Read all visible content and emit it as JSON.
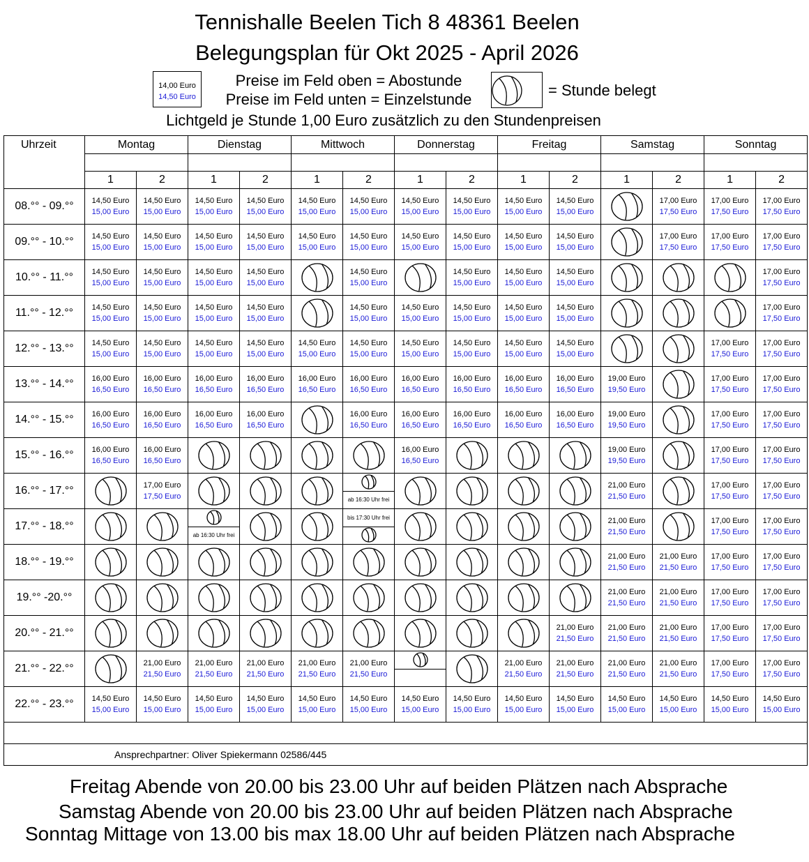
{
  "header": {
    "title": "Tennishalle Beelen Tich 8 48361 Beelen",
    "subtitle": "Belegungsplan für Okt 2025 - April 2026",
    "legend_abo_price": "14,00 Euro",
    "legend_einzel_price": "14,50 Euro",
    "legend_line1": "Preise im Feld oben = Abostunde",
    "legend_line2": "Preise im Feld unten = Einzelstunde",
    "legend_booked": "= Stunde belegt",
    "light_fee": "Lichtgeld je Stunde 1,00 Euro zusätzlich zu den Stundenpreisen"
  },
  "table": {
    "time_header": "Uhrzeit",
    "days": [
      "Montag",
      "Dienstag",
      "Mittwoch",
      "Donnerstag",
      "Freitag",
      "Samstag",
      "Sonntag"
    ],
    "courts": [
      "1",
      "2"
    ],
    "rows": [
      {
        "time": "08.°° - 09.°°",
        "cells": [
          "14,50 Euro|15,00 Euro",
          "14,50 Euro|15,00 Euro",
          "14,50 Euro|15,00 Euro",
          "14,50 Euro|15,00 Euro",
          "14,50 Euro|15,00 Euro",
          "14,50 Euro|15,00 Euro",
          "14,50 Euro|15,00 Euro",
          "14,50 Euro|15,00 Euro",
          "14,50 Euro|15,00 Euro",
          "14,50 Euro|15,00 Euro",
          "B",
          "17,00 Euro|17,50 Euro",
          "17,00 Euro|17,50 Euro",
          "17,00 Euro|17,50 Euro"
        ]
      },
      {
        "time": "09.°° - 10.°°",
        "cells": [
          "14,50 Euro|15,00 Euro",
          "14,50 Euro|15,00 Euro",
          "14,50 Euro|15,00 Euro",
          "14,50 Euro|15,00 Euro",
          "14,50 Euro|15,00 Euro",
          "14,50 Euro|15,00 Euro",
          "14,50 Euro|15,00 Euro",
          "14,50 Euro|15,00 Euro",
          "14,50 Euro|15,00 Euro",
          "14,50 Euro|15,00 Euro",
          "B",
          "17,00 Euro|17,50 Euro",
          "17,00 Euro|17,50 Euro",
          "17,00 Euro|17,50 Euro"
        ]
      },
      {
        "time": "10.°° - 11.°°",
        "cells": [
          "14,50 Euro|15,00 Euro",
          "14,50 Euro|15,00 Euro",
          "14,50 Euro|15,00 Euro",
          "14,50 Euro|15,00 Euro",
          "B",
          "14,50 Euro|15,00 Euro",
          "B",
          "14,50 Euro|15,00 Euro",
          "14,50 Euro|15,00 Euro",
          "14,50 Euro|15,00 Euro",
          "B",
          "B",
          "B",
          "17,00 Euro|17,50 Euro"
        ]
      },
      {
        "time": "11.°° - 12.°°",
        "cells": [
          "14,50 Euro|15,00 Euro",
          "14,50 Euro|15,00 Euro",
          "14,50 Euro|15,00 Euro",
          "14,50 Euro|15,00 Euro",
          "B",
          "14,50 Euro|15,00 Euro",
          "14,50 Euro|15,00 Euro",
          "14,50 Euro|15,00 Euro",
          "14,50 Euro|15,00 Euro",
          "14,50 Euro|15,00 Euro",
          "B",
          "B",
          "B",
          "17,00 Euro|17,50 Euro"
        ]
      },
      {
        "time": "12.°° - 13.°°",
        "cells": [
          "14,50 Euro|15,00 Euro",
          "14,50 Euro|15,00 Euro",
          "14,50 Euro|15,00 Euro",
          "14,50 Euro|15,00 Euro",
          "14,50 Euro|15,00 Euro",
          "14,50 Euro|15,00 Euro",
          "14,50 Euro|15,00 Euro",
          "14,50 Euro|15,00 Euro",
          "14,50 Euro|15,00 Euro",
          "14,50 Euro|15,00 Euro",
          "B",
          "B",
          "17,00 Euro|17,50 Euro",
          "17,00 Euro|17,50 Euro"
        ]
      },
      {
        "time": "13.°° - 14.°°",
        "cells": [
          "16,00 Euro|16,50 Euro",
          "16,00 Euro|16,50 Euro",
          "16,00 Euro|16,50 Euro",
          "16,00 Euro|16,50 Euro",
          "16,00 Euro|16,50 Euro",
          "16,00 Euro|16,50 Euro",
          "16,00 Euro|16,50 Euro",
          "16,00 Euro|16,50 Euro",
          "16,00 Euro|16,50 Euro",
          "16,00 Euro|16,50 Euro",
          "19,00 Euro|19,50 Euro",
          "B",
          "17,00 Euro|17,50 Euro",
          "17,00 Euro|17,50 Euro"
        ]
      },
      {
        "time": "14.°° - 15.°°",
        "cells": [
          "16,00 Euro|16,50 Euro",
          "16,00 Euro|16,50 Euro",
          "16,00 Euro|16,50 Euro",
          "16,00 Euro|16,50 Euro",
          "B",
          "16,00 Euro|16,50 Euro",
          "16,00 Euro|16,50 Euro",
          "16,00 Euro|16,50 Euro",
          "16,00 Euro|16,50 Euro",
          "16,00 Euro|16,50 Euro",
          "19,00 Euro|19,50 Euro",
          "B",
          "17,00 Euro|17,50 Euro",
          "17,00 Euro|17,50 Euro"
        ]
      },
      {
        "time": "15.°° - 16.°°",
        "cells": [
          "16,00 Euro|16,50 Euro",
          "16,00 Euro|16,50 Euro",
          "B",
          "B",
          "B",
          "B",
          "16,00 Euro|16,50 Euro",
          "B",
          "B",
          "B",
          "19,00 Euro|19,50 Euro",
          "B",
          "17,00 Euro|17,50 Euro",
          "17,00 Euro|17,50 Euro"
        ]
      },
      {
        "time": "16.°° - 17.°°",
        "cells": [
          "B",
          "17,00 Euro|17,50 Euro",
          "B",
          "B",
          "B",
          "ST:ab 16:30 Uhr frei",
          "B",
          "B",
          "B",
          "B",
          "21,00 Euro|21,50 Euro",
          "B",
          "17,00 Euro|17,50 Euro",
          "17,00 Euro|17,50 Euro"
        ]
      },
      {
        "time": "17.°° - 18.°°",
        "cells": [
          "B",
          "B",
          "ST:ab 16:30 Uhr frei",
          "B",
          "B",
          "SB:bis 17:30 Uhr frei",
          "B",
          "B",
          "B",
          "B",
          "21,00 Euro|21,50 Euro",
          "B",
          "17,00 Euro|17,50 Euro",
          "17,00 Euro|17,50 Euro"
        ]
      },
      {
        "time": "18.°° - 19.°°",
        "cells": [
          "B",
          "B",
          "B",
          "B",
          "B",
          "B",
          "B",
          "B",
          "B",
          "B",
          "21,00 Euro|21,50 Euro",
          "21,00 Euro|21,50 Euro",
          "17,00 Euro|17,50 Euro",
          "17,00 Euro|17,50 Euro"
        ]
      },
      {
        "time": "19.°° -20.°°",
        "cells": [
          "B",
          "B",
          "B",
          "B",
          "B",
          "B",
          "B",
          "B",
          "B",
          "B",
          "21,00 Euro|21,50 Euro",
          "21,00 Euro|21,50 Euro",
          "17,00 Euro|17,50 Euro",
          "17,00 Euro|17,50 Euro"
        ]
      },
      {
        "time": "20.°° - 21.°°",
        "cells": [
          "B",
          "B",
          "B",
          "B",
          "B",
          "B",
          "B",
          "B",
          "B",
          "21,00 Euro|21,50 Euro",
          "21,00 Euro|21,50 Euro",
          "21,00 Euro|21,50 Euro",
          "17,00 Euro|17,50 Euro",
          "17,00 Euro|17,50 Euro"
        ]
      },
      {
        "time": "21.°° - 22.°°",
        "cells": [
          "B",
          "21,00 Euro|21,50 Euro",
          "21,00 Euro|21,50 Euro",
          "21,00 Euro|21,50 Euro",
          "21,00 Euro|21,50 Euro",
          "21,00 Euro|21,50 Euro",
          "ST:",
          "B",
          "21,00 Euro|21,50 Euro",
          "21,00 Euro|21,50 Euro",
          "21,00 Euro|21,50 Euro",
          "21,00 Euro|21,50 Euro",
          "17,00 Euro|17,50 Euro",
          "17,00 Euro|17,50 Euro"
        ]
      },
      {
        "time": "22.°° - 23.°°",
        "cells": [
          "14,50 Euro|15,00 Euro",
          "14,50 Euro|15,00 Euro",
          "14,50 Euro|15,00 Euro",
          "14,50 Euro|15,00 Euro",
          "14,50 Euro|15,00 Euro",
          "14,50 Euro|15,00 Euro",
          "14,50 Euro|15,00 Euro",
          "14,50 Euro|15,00 Euro",
          "14,50 Euro|15,00 Euro",
          "14,50 Euro|15,00 Euro",
          "14,50 Euro|15,00 Euro",
          "14,50 Euro|15,00 Euro",
          "14,50 Euro|15,00 Euro",
          "14,50 Euro|15,00 Euro"
        ]
      }
    ],
    "contact": "Ansprechpartner: Oliver Spiekermann 02586/445"
  },
  "footer": {
    "line1": "Freitag Abende von 20.00 bis 23.00 Uhr auf beiden Plätzen nach Absprache",
    "line2": "Samstag Abende von 20.00 bis 23.00 Uhr auf beiden Plätzen nach Absprache",
    "line3": "Sonntag Mittage von 13.00 bis max 18.00 Uhr auf beiden Plätzen nach Absprache"
  },
  "colors": {
    "einzel_price": "#1a1ad6",
    "border": "#000000"
  },
  "icons": {
    "booked": "tennis-ball-icon"
  }
}
